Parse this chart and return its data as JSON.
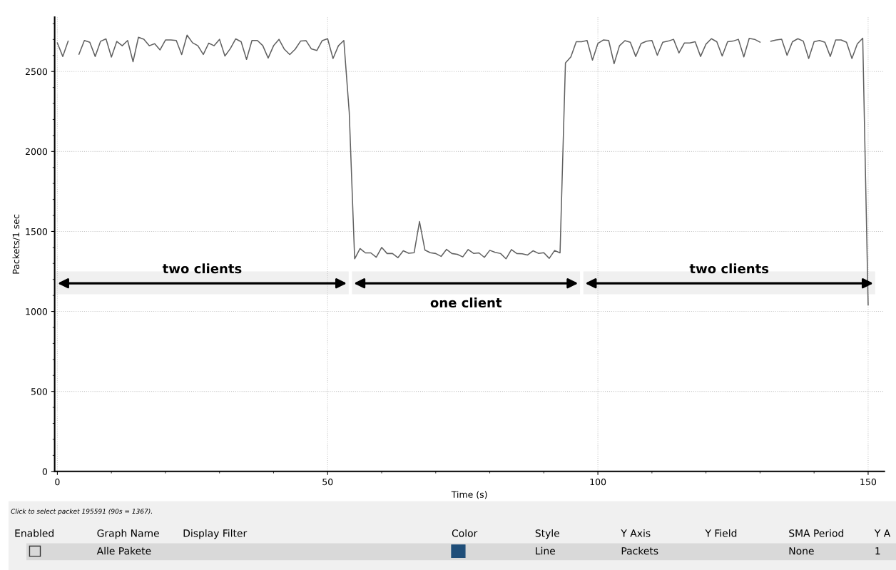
{
  "chart_data": {
    "type": "line",
    "xlabel": "Time (s)",
    "ylabel": "Packets/1 sec",
    "x": [
      0,
      1,
      2,
      3,
      4,
      5,
      6,
      7,
      8,
      9,
      10,
      11,
      12,
      13,
      14,
      15,
      16,
      17,
      18,
      19,
      20,
      21,
      22,
      23,
      24,
      25,
      26,
      27,
      28,
      29,
      30,
      31,
      32,
      33,
      34,
      35,
      36,
      37,
      38,
      39,
      40,
      41,
      42,
      43,
      44,
      45,
      46,
      47,
      48,
      49,
      50,
      51,
      52,
      53,
      54,
      55,
      56,
      57,
      58,
      59,
      60,
      61,
      62,
      63,
      64,
      65,
      66,
      67,
      68,
      69,
      70,
      71,
      72,
      73,
      74,
      75,
      76,
      77,
      78,
      79,
      80,
      81,
      82,
      83,
      84,
      85,
      86,
      87,
      88,
      89,
      90,
      91,
      92,
      93,
      94,
      95,
      96,
      97,
      98,
      99,
      100,
      101,
      102,
      103,
      104,
      105,
      106,
      107,
      108,
      109,
      110,
      111,
      112,
      113,
      114,
      115,
      116,
      117,
      118,
      119,
      120,
      121,
      122,
      123,
      124,
      125,
      126,
      127,
      128,
      129,
      130,
      131,
      132,
      133,
      134,
      135,
      136,
      137,
      138,
      139,
      140,
      141,
      142,
      143,
      144,
      145,
      146,
      147,
      148,
      149,
      150
    ],
    "series": [
      {
        "color": "#606060",
        "values": [
          2678,
          2594,
          2690,
          null,
          2608,
          2694,
          2683,
          2594,
          2689,
          2704,
          2590,
          2688,
          2661,
          2694,
          2561,
          2714,
          2702,
          2661,
          2674,
          2635,
          2697,
          2697,
          2694,
          2606,
          2727,
          2680,
          2661,
          2606,
          2677,
          2661,
          2701,
          2597,
          2643,
          2704,
          2686,
          2576,
          2694,
          2694,
          2662,
          2584,
          2661,
          2701,
          2639,
          2606,
          2639,
          2690,
          2693,
          2641,
          2631,
          2693,
          2705,
          2581,
          2661,
          2694,
          2245,
          1329,
          1393,
          1366,
          1366,
          1339,
          1400,
          1362,
          1362,
          1336,
          1379,
          1364,
          1367,
          1562,
          1384,
          1367,
          1362,
          1344,
          1388,
          1362,
          1357,
          1341,
          1387,
          1363,
          1366,
          1338,
          1382,
          1369,
          1362,
          1329,
          1387,
          1362,
          1360,
          1353,
          1379,
          1363,
          1367,
          1332,
          1381,
          1366,
          2553,
          2591,
          2686,
          2686,
          2694,
          2571,
          2675,
          2697,
          2694,
          2549,
          2661,
          2693,
          2683,
          2594,
          2675,
          2689,
          2694,
          2601,
          2683,
          2690,
          2701,
          2616,
          2678,
          2678,
          2686,
          2594,
          2671,
          2705,
          2686,
          2597,
          2686,
          2690,
          2701,
          2591,
          2707,
          2701,
          2683,
          null,
          2689,
          2697,
          2702,
          2601,
          2686,
          2705,
          2690,
          2581,
          2686,
          2694,
          2683,
          2594,
          2697,
          2697,
          2683,
          2581,
          2673,
          2708,
          1040
        ]
      }
    ],
    "xlim": [
      -0.5,
      153
    ],
    "xticks": [
      0,
      50,
      100,
      150
    ],
    "ylim": [
      0,
      2840
    ],
    "yticks": [
      0,
      500,
      1000,
      1500,
      2000,
      2500
    ],
    "grid": true,
    "line_style": "solid",
    "marker": "none",
    "bands": [
      {
        "axis": "x",
        "from": -0.3,
        "to": 53.9,
        "label": "two clients",
        "color": "#f0f0f0"
      },
      {
        "axis": "x",
        "from": 54.5,
        "to": 96.7,
        "label": "one client",
        "color": "#f0f0f0"
      },
      {
        "axis": "x",
        "from": 97.3,
        "to": 151.3,
        "label": "two clients",
        "color": "#f0f0f0"
      }
    ],
    "annotations": [
      "Click to select packet 195591 (90s = 1367).",
      "Enabled",
      "Graph Name",
      "Display Filter",
      "Color",
      "Style",
      "Y Axis",
      "Y Field",
      "SMA Period",
      "Y A",
      "Alle Pakete",
      "Line",
      "Packets",
      "None",
      "1"
    ]
  }
}
